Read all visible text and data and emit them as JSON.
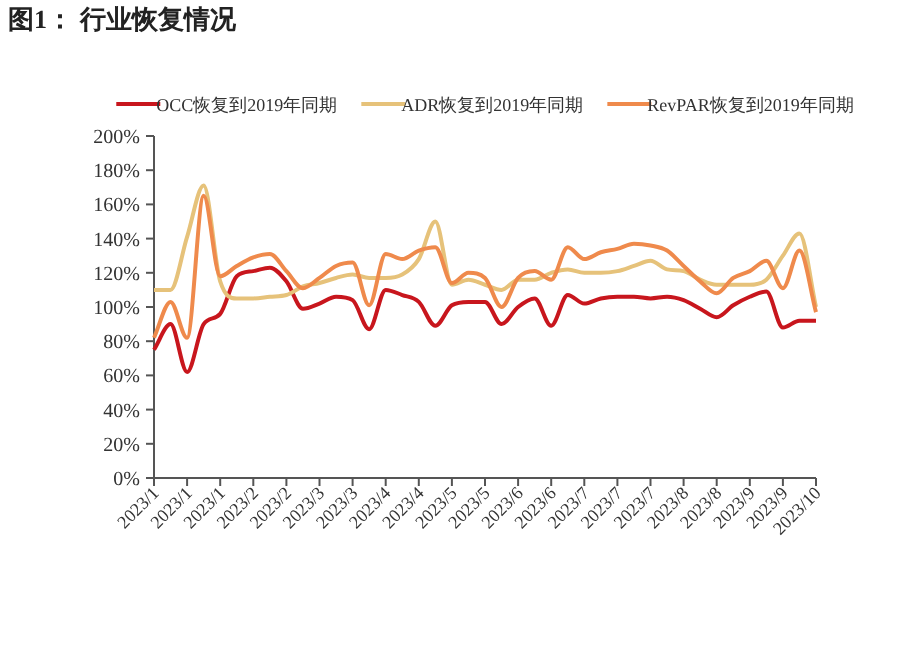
{
  "chart_data": {
    "type": "line",
    "title": "图1：  行业恢复情况",
    "categories": [
      "2023/1",
      null,
      "2023/1",
      null,
      "2023/1",
      null,
      "2023/2",
      null,
      "2023/2",
      null,
      "2023/3",
      null,
      "2023/3",
      null,
      "2023/4",
      null,
      "2023/4",
      null,
      "2023/5",
      null,
      "2023/5",
      null,
      "2023/6",
      null,
      "2023/6",
      null,
      "2023/7",
      null,
      "2023/7",
      null,
      "2023/7",
      null,
      "2023/8",
      null,
      "2023/8",
      null,
      "2023/9",
      null,
      "2023/9",
      null,
      "2023/10"
    ],
    "series": [
      {
        "name": "OCC恢复到2019年同期",
        "color": "#c8161d",
        "values": [
          75,
          90,
          62,
          90,
          96,
          118,
          121,
          123,
          115,
          99,
          102,
          106,
          104,
          87,
          110,
          107,
          103,
          89,
          101,
          103,
          103,
          90,
          100,
          105,
          89,
          107,
          102,
          105,
          106,
          106,
          105,
          106,
          104,
          99,
          94,
          101,
          106,
          109,
          88,
          92,
          92
        ]
      },
      {
        "name": "ADR恢复到2019年同期",
        "color": "#e6c27a",
        "values": [
          110,
          110,
          141,
          171,
          115,
          105,
          105,
          106,
          107,
          112,
          114,
          117,
          119,
          117,
          117,
          119,
          128,
          150,
          113,
          116,
          113,
          110,
          116,
          116,
          120,
          122,
          120,
          120,
          121,
          124,
          127,
          122,
          121,
          116,
          113,
          113,
          113,
          116,
          130,
          143,
          100
        ]
      },
      {
        "name": "RevPAR恢复到2019年同期",
        "color": "#ef8a4c",
        "values": [
          82,
          103,
          82,
          165,
          118,
          124,
          129,
          131,
          121,
          111,
          117,
          124,
          126,
          101,
          131,
          128,
          133,
          135,
          114,
          120,
          117,
          100,
          117,
          121,
          116,
          135,
          128,
          132,
          134,
          137,
          136,
          133,
          124,
          115,
          108,
          117,
          121,
          127,
          111,
          133,
          97
        ]
      }
    ],
    "ylim": [
      0,
      200
    ],
    "yticks": [
      {
        "value": 0,
        "label": "0%"
      },
      {
        "value": 20,
        "label": "20%"
      },
      {
        "value": 40,
        "label": "40%"
      },
      {
        "value": 60,
        "label": "60%"
      },
      {
        "value": 80,
        "label": "80%"
      },
      {
        "value": 100,
        "label": "100%"
      },
      {
        "value": 120,
        "label": "120%"
      },
      {
        "value": 140,
        "label": "140%"
      },
      {
        "value": 160,
        "label": "160%"
      },
      {
        "value": 180,
        "label": "180%"
      },
      {
        "value": 200,
        "label": "200%"
      }
    ],
    "legend": "top",
    "marker": "none"
  }
}
